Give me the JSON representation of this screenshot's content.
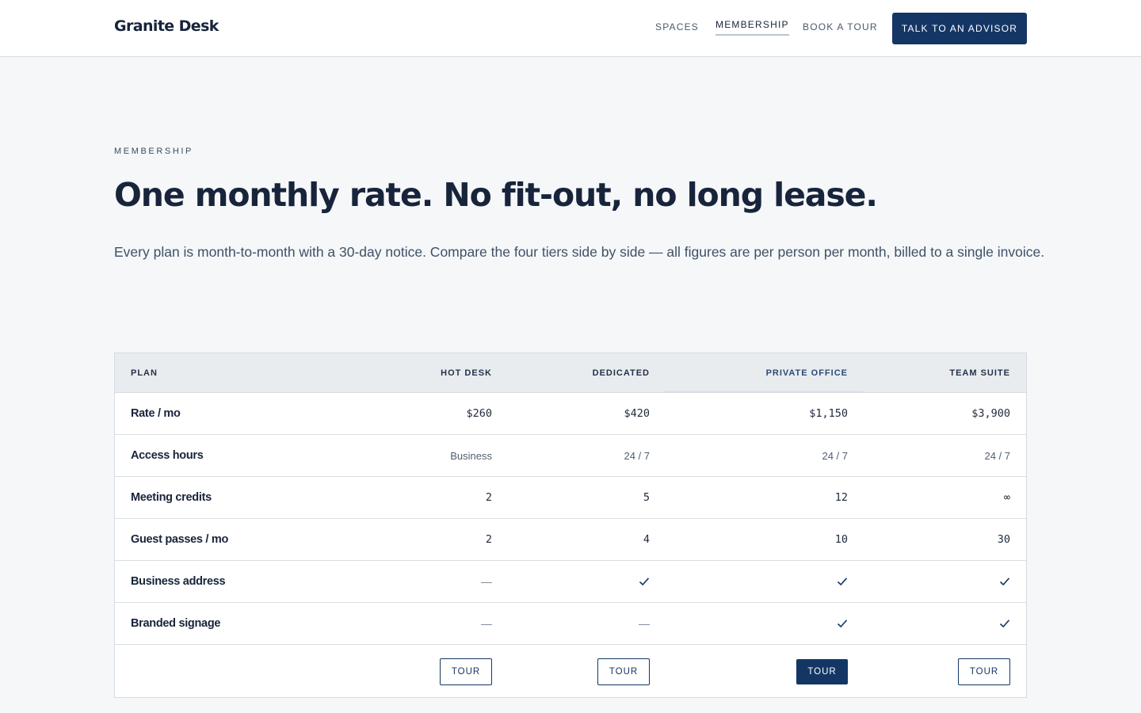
{
  "brand": "Granite Desk",
  "nav": {
    "links": [
      "SPACES",
      "MEMBERSHIP",
      "BOOK A TOUR"
    ],
    "active": "MEMBERSHIP",
    "cta": "TALK TO AN ADVISOR"
  },
  "hero": {
    "eyebrow": "MEMBERSHIP",
    "title": "One monthly rate. No fit-out, no long lease.",
    "lede": "Every plan is month-to-month with a 30-day notice. Compare the four tiers side by side — all figures are per person per month, billed to a single invoice."
  },
  "table": {
    "header": [
      "PLAN",
      "HOT DESK",
      "DEDICATED",
      "PRIVATE OFFICE",
      "TEAM SUITE"
    ],
    "highlighted_column": "PRIVATE OFFICE",
    "rows": [
      {
        "label": "Rate / mo",
        "values": [
          "$260",
          "$420",
          "$1,150",
          "$3,900"
        ]
      },
      {
        "label": "Access hours",
        "values": [
          "Business",
          "24 / 7",
          "24 / 7",
          "24 / 7"
        ]
      },
      {
        "label": "Meeting credits",
        "values": [
          "2",
          "5",
          "12",
          "∞"
        ]
      },
      {
        "label": "Guest passes / mo",
        "values": [
          "2",
          "4",
          "10",
          "30"
        ]
      },
      {
        "label": "Business address",
        "values": [
          "—",
          "check-icon",
          "check-icon",
          "check-icon"
        ]
      },
      {
        "label": "Branded signage",
        "values": [
          "—",
          "—",
          "check-icon",
          "check-icon"
        ]
      }
    ],
    "tour_buttons": [
      "TOUR",
      "TOUR",
      "TOUR",
      "TOUR"
    ],
    "primary_button": "PRIVATE OFFICE"
  },
  "colors": {
    "navy": "#143665",
    "ink": "#17243b",
    "page_bg": "#f5f7f9",
    "header_row_bg": "#e9ecef"
  }
}
